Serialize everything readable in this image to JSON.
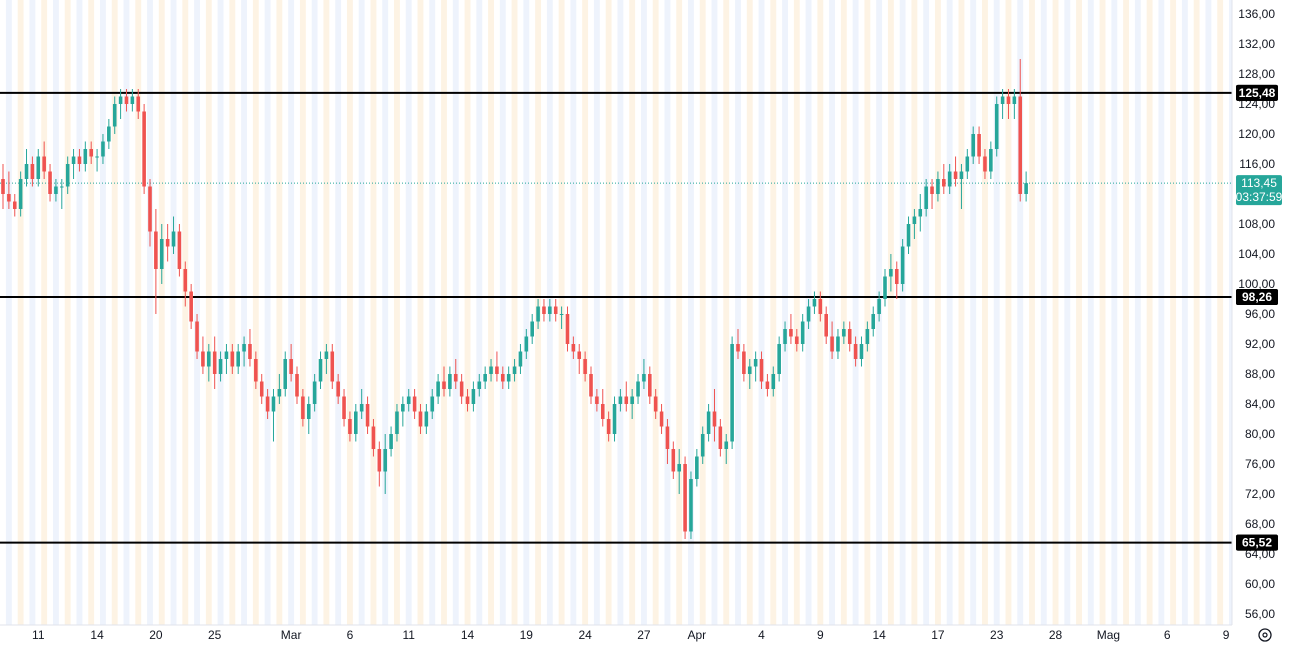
{
  "chart_data": {
    "type": "candlestick",
    "y_axis": {
      "min": 53,
      "max": 138,
      "ticks": [
        "136,00",
        "132,00",
        "128,00",
        "124,00",
        "120,00",
        "116,00",
        "112,00",
        "108,00",
        "104,00",
        "100,00",
        "96,00",
        "92,00",
        "88,00",
        "84,00",
        "80,00",
        "76,00",
        "72,00",
        "68,00",
        "64,00",
        "60,00",
        "56,00"
      ]
    },
    "x_axis": {
      "labels": [
        {
          "text": "11",
          "bar": 6
        },
        {
          "text": "14",
          "bar": 16
        },
        {
          "text": "20",
          "bar": 26
        },
        {
          "text": "25",
          "bar": 36
        },
        {
          "text": "Mar",
          "bar": 49
        },
        {
          "text": "6",
          "bar": 59
        },
        {
          "text": "11",
          "bar": 69
        },
        {
          "text": "14",
          "bar": 79
        },
        {
          "text": "19",
          "bar": 89
        },
        {
          "text": "24",
          "bar": 99
        },
        {
          "text": "27",
          "bar": 109
        },
        {
          "text": "Apr",
          "bar": 118
        },
        {
          "text": "4",
          "bar": 129
        },
        {
          "text": "9",
          "bar": 139
        },
        {
          "text": "14",
          "bar": 149
        },
        {
          "text": "17",
          "bar": 159
        },
        {
          "text": "23",
          "bar": 169
        },
        {
          "text": "28",
          "bar": 179
        },
        {
          "text": "Mag",
          "bar": 188
        },
        {
          "text": "6",
          "bar": 198
        },
        {
          "text": "9",
          "bar": 208
        }
      ]
    },
    "horizontal_levels": [
      {
        "value": 125.48,
        "label": "125,48"
      },
      {
        "value": 98.26,
        "label": "98,26"
      },
      {
        "value": 65.52,
        "label": "65,52"
      }
    ],
    "last_price": {
      "value": 113.45,
      "label": "113,45",
      "countdown": "03:37:59"
    },
    "candles": [
      [
        114,
        116,
        110,
        112
      ],
      [
        112,
        115,
        110,
        111
      ],
      [
        111,
        112,
        109,
        110
      ],
      [
        110,
        115,
        109,
        114
      ],
      [
        114,
        118,
        113,
        116
      ],
      [
        116,
        117,
        113,
        114
      ],
      [
        114,
        118,
        113,
        117
      ],
      [
        117,
        119,
        114,
        115
      ],
      [
        115,
        116,
        111,
        112
      ],
      [
        112,
        114,
        111,
        113
      ],
      [
        113,
        114,
        110,
        113
      ],
      [
        113,
        117,
        112,
        116
      ],
      [
        116,
        118,
        114,
        117
      ],
      [
        117,
        118,
        115,
        116
      ],
      [
        116,
        119,
        115,
        118
      ],
      [
        118,
        119,
        116,
        117
      ],
      [
        117,
        118,
        115,
        117
      ],
      [
        117,
        120,
        116,
        119
      ],
      [
        119,
        122,
        118,
        121
      ],
      [
        121,
        125,
        120,
        124
      ],
      [
        124,
        126,
        122,
        125
      ],
      [
        125,
        126,
        123,
        124
      ],
      [
        124,
        126,
        123,
        125
      ],
      [
        125,
        126,
        122,
        123
      ],
      [
        123,
        124,
        112,
        113
      ],
      [
        113,
        114,
        105,
        107
      ],
      [
        107,
        110,
        96,
        102
      ],
      [
        102,
        108,
        100,
        106
      ],
      [
        106,
        108,
        103,
        105
      ],
      [
        105,
        109,
        104,
        107
      ],
      [
        107,
        108,
        101,
        102
      ],
      [
        102,
        103,
        97,
        99
      ],
      [
        99,
        100,
        94,
        95
      ],
      [
        95,
        96,
        90,
        91
      ],
      [
        91,
        93,
        88,
        89
      ],
      [
        89,
        92,
        87,
        91
      ],
      [
        91,
        93,
        86,
        88
      ],
      [
        88,
        91,
        87,
        90
      ],
      [
        90,
        92,
        88,
        91
      ],
      [
        91,
        92,
        88,
        89
      ],
      [
        89,
        92,
        88,
        91
      ],
      [
        91,
        93,
        89,
        92
      ],
      [
        92,
        94,
        89,
        90
      ],
      [
        90,
        91,
        86,
        87
      ],
      [
        87,
        88,
        84,
        85
      ],
      [
        85,
        86,
        82,
        83
      ],
      [
        83,
        86,
        79,
        85
      ],
      [
        85,
        88,
        84,
        86
      ],
      [
        86,
        91,
        85,
        90
      ],
      [
        90,
        92,
        87,
        88
      ],
      [
        88,
        89,
        84,
        85
      ],
      [
        85,
        86,
        81,
        82
      ],
      [
        82,
        85,
        80,
        84
      ],
      [
        84,
        88,
        83,
        87
      ],
      [
        87,
        91,
        86,
        90
      ],
      [
        90,
        92,
        88,
        91
      ],
      [
        91,
        92,
        86,
        87
      ],
      [
        87,
        88,
        84,
        85
      ],
      [
        85,
        86,
        81,
        82
      ],
      [
        82,
        83,
        79,
        80
      ],
      [
        80,
        84,
        79,
        83
      ],
      [
        83,
        86,
        82,
        84
      ],
      [
        84,
        85,
        80,
        81
      ],
      [
        81,
        82,
        77,
        78
      ],
      [
        78,
        79,
        73,
        75
      ],
      [
        75,
        80,
        72,
        78
      ],
      [
        78,
        81,
        77,
        80
      ],
      [
        80,
        84,
        79,
        83
      ],
      [
        83,
        85,
        81,
        84
      ],
      [
        84,
        86,
        83,
        85
      ],
      [
        85,
        86,
        82,
        83
      ],
      [
        83,
        84,
        80,
        81
      ],
      [
        81,
        84,
        80,
        83
      ],
      [
        83,
        86,
        82,
        85
      ],
      [
        85,
        88,
        84,
        87
      ],
      [
        87,
        89,
        85,
        86
      ],
      [
        86,
        89,
        85,
        88
      ],
      [
        88,
        90,
        86,
        87
      ],
      [
        87,
        88,
        84,
        85
      ],
      [
        85,
        86,
        83,
        84
      ],
      [
        84,
        87,
        83,
        86
      ],
      [
        86,
        88,
        85,
        87
      ],
      [
        87,
        89,
        86,
        88
      ],
      [
        88,
        90,
        87,
        89
      ],
      [
        89,
        91,
        87,
        88
      ],
      [
        88,
        89,
        86,
        87
      ],
      [
        87,
        89,
        86,
        88
      ],
      [
        88,
        90,
        87,
        89
      ],
      [
        89,
        92,
        88,
        91
      ],
      [
        91,
        94,
        90,
        93
      ],
      [
        93,
        96,
        92,
        95
      ],
      [
        95,
        98,
        94,
        97
      ],
      [
        97,
        98,
        95,
        96
      ],
      [
        96,
        98,
        95,
        97
      ],
      [
        97,
        98,
        95,
        96
      ],
      [
        96,
        97,
        94,
        96
      ],
      [
        96,
        97,
        91,
        92
      ],
      [
        92,
        93,
        90,
        91
      ],
      [
        91,
        92,
        88,
        90
      ],
      [
        90,
        91,
        87,
        88
      ],
      [
        88,
        89,
        84,
        85
      ],
      [
        85,
        86,
        83,
        84
      ],
      [
        84,
        86,
        81,
        82
      ],
      [
        82,
        83,
        79,
        80
      ],
      [
        80,
        85,
        79,
        84
      ],
      [
        84,
        86,
        83,
        85
      ],
      [
        85,
        87,
        83,
        84
      ],
      [
        84,
        86,
        82,
        85
      ],
      [
        85,
        88,
        84,
        87
      ],
      [
        87,
        90,
        86,
        88
      ],
      [
        88,
        89,
        84,
        85
      ],
      [
        85,
        86,
        82,
        83
      ],
      [
        83,
        84,
        80,
        81
      ],
      [
        81,
        82,
        76,
        78
      ],
      [
        78,
        79,
        74,
        75
      ],
      [
        75,
        78,
        72,
        76
      ],
      [
        76,
        77,
        66,
        67
      ],
      [
        67,
        75,
        66,
        74
      ],
      [
        74,
        78,
        73,
        77
      ],
      [
        77,
        81,
        76,
        80
      ],
      [
        80,
        84,
        79,
        83
      ],
      [
        83,
        86,
        79,
        81
      ],
      [
        81,
        82,
        77,
        78
      ],
      [
        78,
        80,
        76,
        79
      ],
      [
        79,
        93,
        78,
        92
      ],
      [
        92,
        94,
        90,
        91
      ],
      [
        91,
        92,
        87,
        88
      ],
      [
        88,
        90,
        86,
        89
      ],
      [
        89,
        91,
        87,
        90
      ],
      [
        90,
        91,
        86,
        87
      ],
      [
        87,
        88,
        85,
        86
      ],
      [
        86,
        89,
        85,
        88
      ],
      [
        88,
        93,
        87,
        92
      ],
      [
        92,
        95,
        91,
        94
      ],
      [
        94,
        96,
        92,
        93
      ],
      [
        93,
        94,
        91,
        92
      ],
      [
        92,
        96,
        91,
        95
      ],
      [
        95,
        98,
        94,
        97
      ],
      [
        97,
        99,
        96,
        98
      ],
      [
        98,
        99,
        95,
        96
      ],
      [
        96,
        97,
        92,
        93
      ],
      [
        93,
        95,
        90,
        91
      ],
      [
        91,
        94,
        90,
        93
      ],
      [
        93,
        95,
        92,
        94
      ],
      [
        94,
        95,
        91,
        92
      ],
      [
        92,
        93,
        89,
        90
      ],
      [
        90,
        93,
        89,
        92
      ],
      [
        92,
        95,
        91,
        94
      ],
      [
        94,
        97,
        93,
        96
      ],
      [
        96,
        99,
        95,
        98
      ],
      [
        98,
        102,
        97,
        101
      ],
      [
        101,
        104,
        99,
        102
      ],
      [
        102,
        103,
        98,
        100
      ],
      [
        100,
        106,
        99,
        105
      ],
      [
        105,
        109,
        104,
        108
      ],
      [
        108,
        110,
        106,
        109
      ],
      [
        109,
        112,
        107,
        110
      ],
      [
        110,
        114,
        109,
        113
      ],
      [
        113,
        114,
        110,
        112
      ],
      [
        112,
        115,
        111,
        114
      ],
      [
        114,
        116,
        112,
        113
      ],
      [
        113,
        116,
        112,
        115
      ],
      [
        115,
        117,
        113,
        114
      ],
      [
        114,
        116,
        110,
        115
      ],
      [
        115,
        118,
        114,
        117
      ],
      [
        117,
        121,
        116,
        120
      ],
      [
        120,
        121,
        116,
        117
      ],
      [
        117,
        118,
        114,
        115
      ],
      [
        115,
        119,
        114,
        118
      ],
      [
        118,
        125,
        117,
        124
      ],
      [
        124,
        126,
        122,
        125
      ],
      [
        125,
        126,
        122,
        124
      ],
      [
        124,
        126,
        122,
        125
      ],
      [
        125,
        130,
        111,
        112
      ],
      [
        112,
        115,
        111,
        113.45
      ]
    ]
  }
}
